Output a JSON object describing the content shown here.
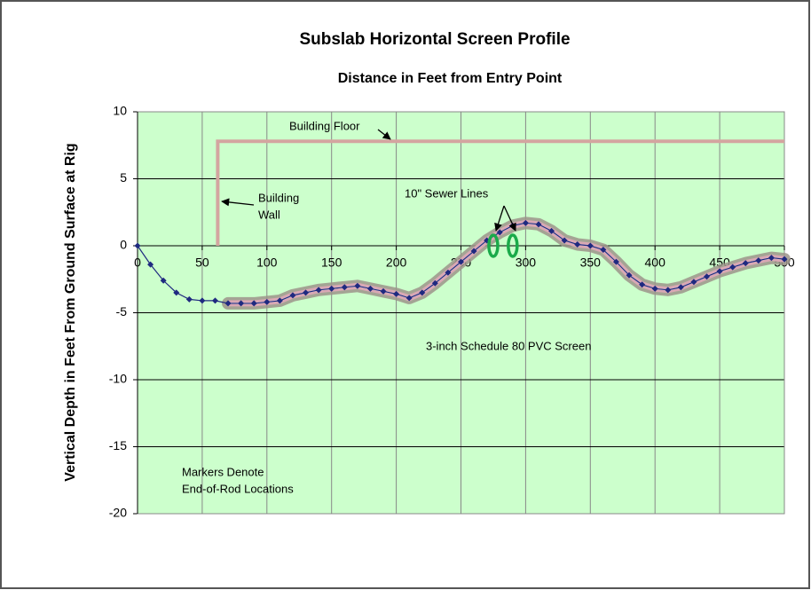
{
  "chart_data": {
    "type": "line",
    "title": "Subslab Horizontal Screen Profile",
    "x_label": "Distance in Feet from Entry Point",
    "y_label": "Vertical Depth in Feet From Ground Surface at Rig",
    "xlim": [
      0,
      500
    ],
    "ylim": [
      -20,
      10
    ],
    "xticks": [
      0,
      50,
      100,
      150,
      200,
      250,
      300,
      350,
      400,
      450,
      500
    ],
    "yticks": [
      -20,
      -15,
      -10,
      -5,
      0,
      5,
      10
    ],
    "grid": true,
    "background": "#ccffcc",
    "x": [
      0,
      10,
      20,
      30,
      40,
      50,
      60,
      70,
      80,
      90,
      100,
      110,
      120,
      130,
      140,
      150,
      160,
      170,
      180,
      190,
      200,
      210,
      220,
      230,
      240,
      250,
      260,
      270,
      280,
      290,
      300,
      310,
      320,
      330,
      340,
      350,
      360,
      370,
      380,
      390,
      400,
      410,
      420,
      430,
      440,
      450,
      460,
      470,
      480,
      490,
      500
    ],
    "series": [
      {
        "color": "#1f2a80",
        "values": [
          0,
          -1.4,
          -2.6,
          -3.5,
          -4.0,
          -4.1,
          -4.1,
          -4.3,
          -4.3,
          -4.3,
          -4.2,
          -4.1,
          -3.7,
          -3.5,
          -3.3,
          -3.2,
          -3.1,
          -3.0,
          -3.2,
          -3.4,
          -3.6,
          -3.9,
          -3.5,
          -2.8,
          -2.0,
          -1.2,
          -0.4,
          0.4,
          1.0,
          1.5,
          1.7,
          1.6,
          1.1,
          0.4,
          0.1,
          0,
          -0.3,
          -1.2,
          -2.2,
          -2.9,
          -3.2,
          -3.3,
          -3.1,
          -2.7,
          -2.3,
          -1.9,
          -1.6,
          -1.3,
          -1.1,
          -0.9,
          -1.0
        ]
      },
      {
        "color": "#d9a8b4",
        "values": [
          null,
          null,
          null,
          null,
          null,
          null,
          null,
          -4.3,
          -4.3,
          -4.3,
          -4.2,
          -4.1,
          -3.7,
          -3.5,
          -3.3,
          -3.2,
          -3.1,
          -3.0,
          -3.2,
          -3.4,
          -3.6,
          -3.9,
          -3.5,
          -2.8,
          -2.0,
          -1.2,
          -0.4,
          0.4,
          1.0,
          1.5,
          1.7,
          1.6,
          1.1,
          0.4,
          0.1,
          0,
          -0.3,
          -1.2,
          -2.2,
          -2.9,
          -3.2,
          -3.3,
          -3.1,
          -2.7,
          -2.3,
          -1.9,
          -1.6,
          -1.3,
          -1.1,
          -0.9,
          -1.0
        ]
      }
    ],
    "building": {
      "color": "#d4a5a0",
      "x": [
        62,
        62,
        500
      ],
      "y": [
        0,
        7.8,
        7.8
      ]
    },
    "sewer_lines": {
      "color": "#1aaa4a",
      "x": [
        275,
        290
      ],
      "y": [
        0,
        0
      ]
    },
    "annotations": [
      [
        "Building Floor"
      ],
      [
        "Building",
        "Wall"
      ],
      [
        "10\" Sewer Lines"
      ],
      [
        "3-inch Schedule 80 PVC Screen"
      ],
      [
        "Markers Denote",
        "End-of-Rod Locations"
      ]
    ]
  }
}
